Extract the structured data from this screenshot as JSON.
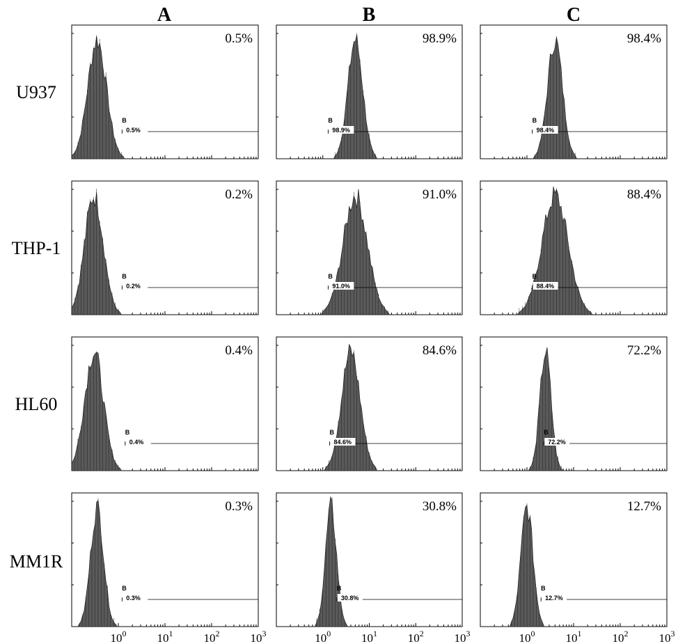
{
  "chart_data": {
    "type": "histogram-grid",
    "columns": [
      "A",
      "B",
      "C"
    ],
    "rows": [
      "U937",
      "THP-1",
      "HL60",
      "MM1R"
    ],
    "x_scale": "log",
    "xlim": [
      0.1,
      1000
    ],
    "x_ticks": [
      {
        "value": 1,
        "base": "10",
        "exp": "0"
      },
      {
        "value": 10,
        "base": "10",
        "exp": "1"
      },
      {
        "value": 100,
        "base": "10",
        "exp": "2"
      },
      {
        "value": 1000,
        "base": "10",
        "exp": "3"
      }
    ],
    "gate_label": "B",
    "panels": [
      {
        "row": "U937",
        "column": "A",
        "percent": "0.5%",
        "peak_x": 0.35,
        "spread": 0.2,
        "gate_start": 1.2
      },
      {
        "row": "U937",
        "column": "B",
        "percent": "98.9%",
        "peak_x": 5.0,
        "spread": 0.16,
        "gate_start": 1.3
      },
      {
        "row": "U937",
        "column": "C",
        "percent": "98.4%",
        "peak_x": 4.0,
        "spread": 0.16,
        "gate_start": 1.3
      },
      {
        "row": "THP-1",
        "column": "A",
        "percent": "0.2%",
        "peak_x": 0.3,
        "spread": 0.2,
        "gate_start": 1.2
      },
      {
        "row": "THP-1",
        "column": "B",
        "percent": "91.0%",
        "peak_x": 5.0,
        "spread": 0.26,
        "gate_start": 1.3
      },
      {
        "row": "THP-1",
        "column": "C",
        "percent": "88.4%",
        "peak_x": 4.0,
        "spread": 0.28,
        "gate_start": 1.3
      },
      {
        "row": "HL60",
        "column": "A",
        "percent": "0.4%",
        "peak_x": 0.3,
        "spread": 0.2,
        "gate_start": 1.4
      },
      {
        "row": "HL60",
        "column": "B",
        "percent": "84.6%",
        "peak_x": 4.0,
        "spread": 0.2,
        "gate_start": 1.4
      },
      {
        "row": "HL60",
        "column": "C",
        "percent": "72.2%",
        "peak_x": 2.5,
        "spread": 0.12,
        "gate_start": 2.3
      },
      {
        "row": "MM1R",
        "column": "A",
        "percent": "0.3%",
        "peak_x": 0.35,
        "spread": 0.14,
        "gate_start": 1.2
      },
      {
        "row": "MM1R",
        "column": "B",
        "percent": "30.8%",
        "peak_x": 1.5,
        "spread": 0.12,
        "gate_start": 2.0
      },
      {
        "row": "MM1R",
        "column": "C",
        "percent": "12.7%",
        "peak_x": 1.0,
        "spread": 0.13,
        "gate_start": 2.0
      }
    ],
    "histogram_fill": "#5a5a5a",
    "line_color": "#000000"
  }
}
